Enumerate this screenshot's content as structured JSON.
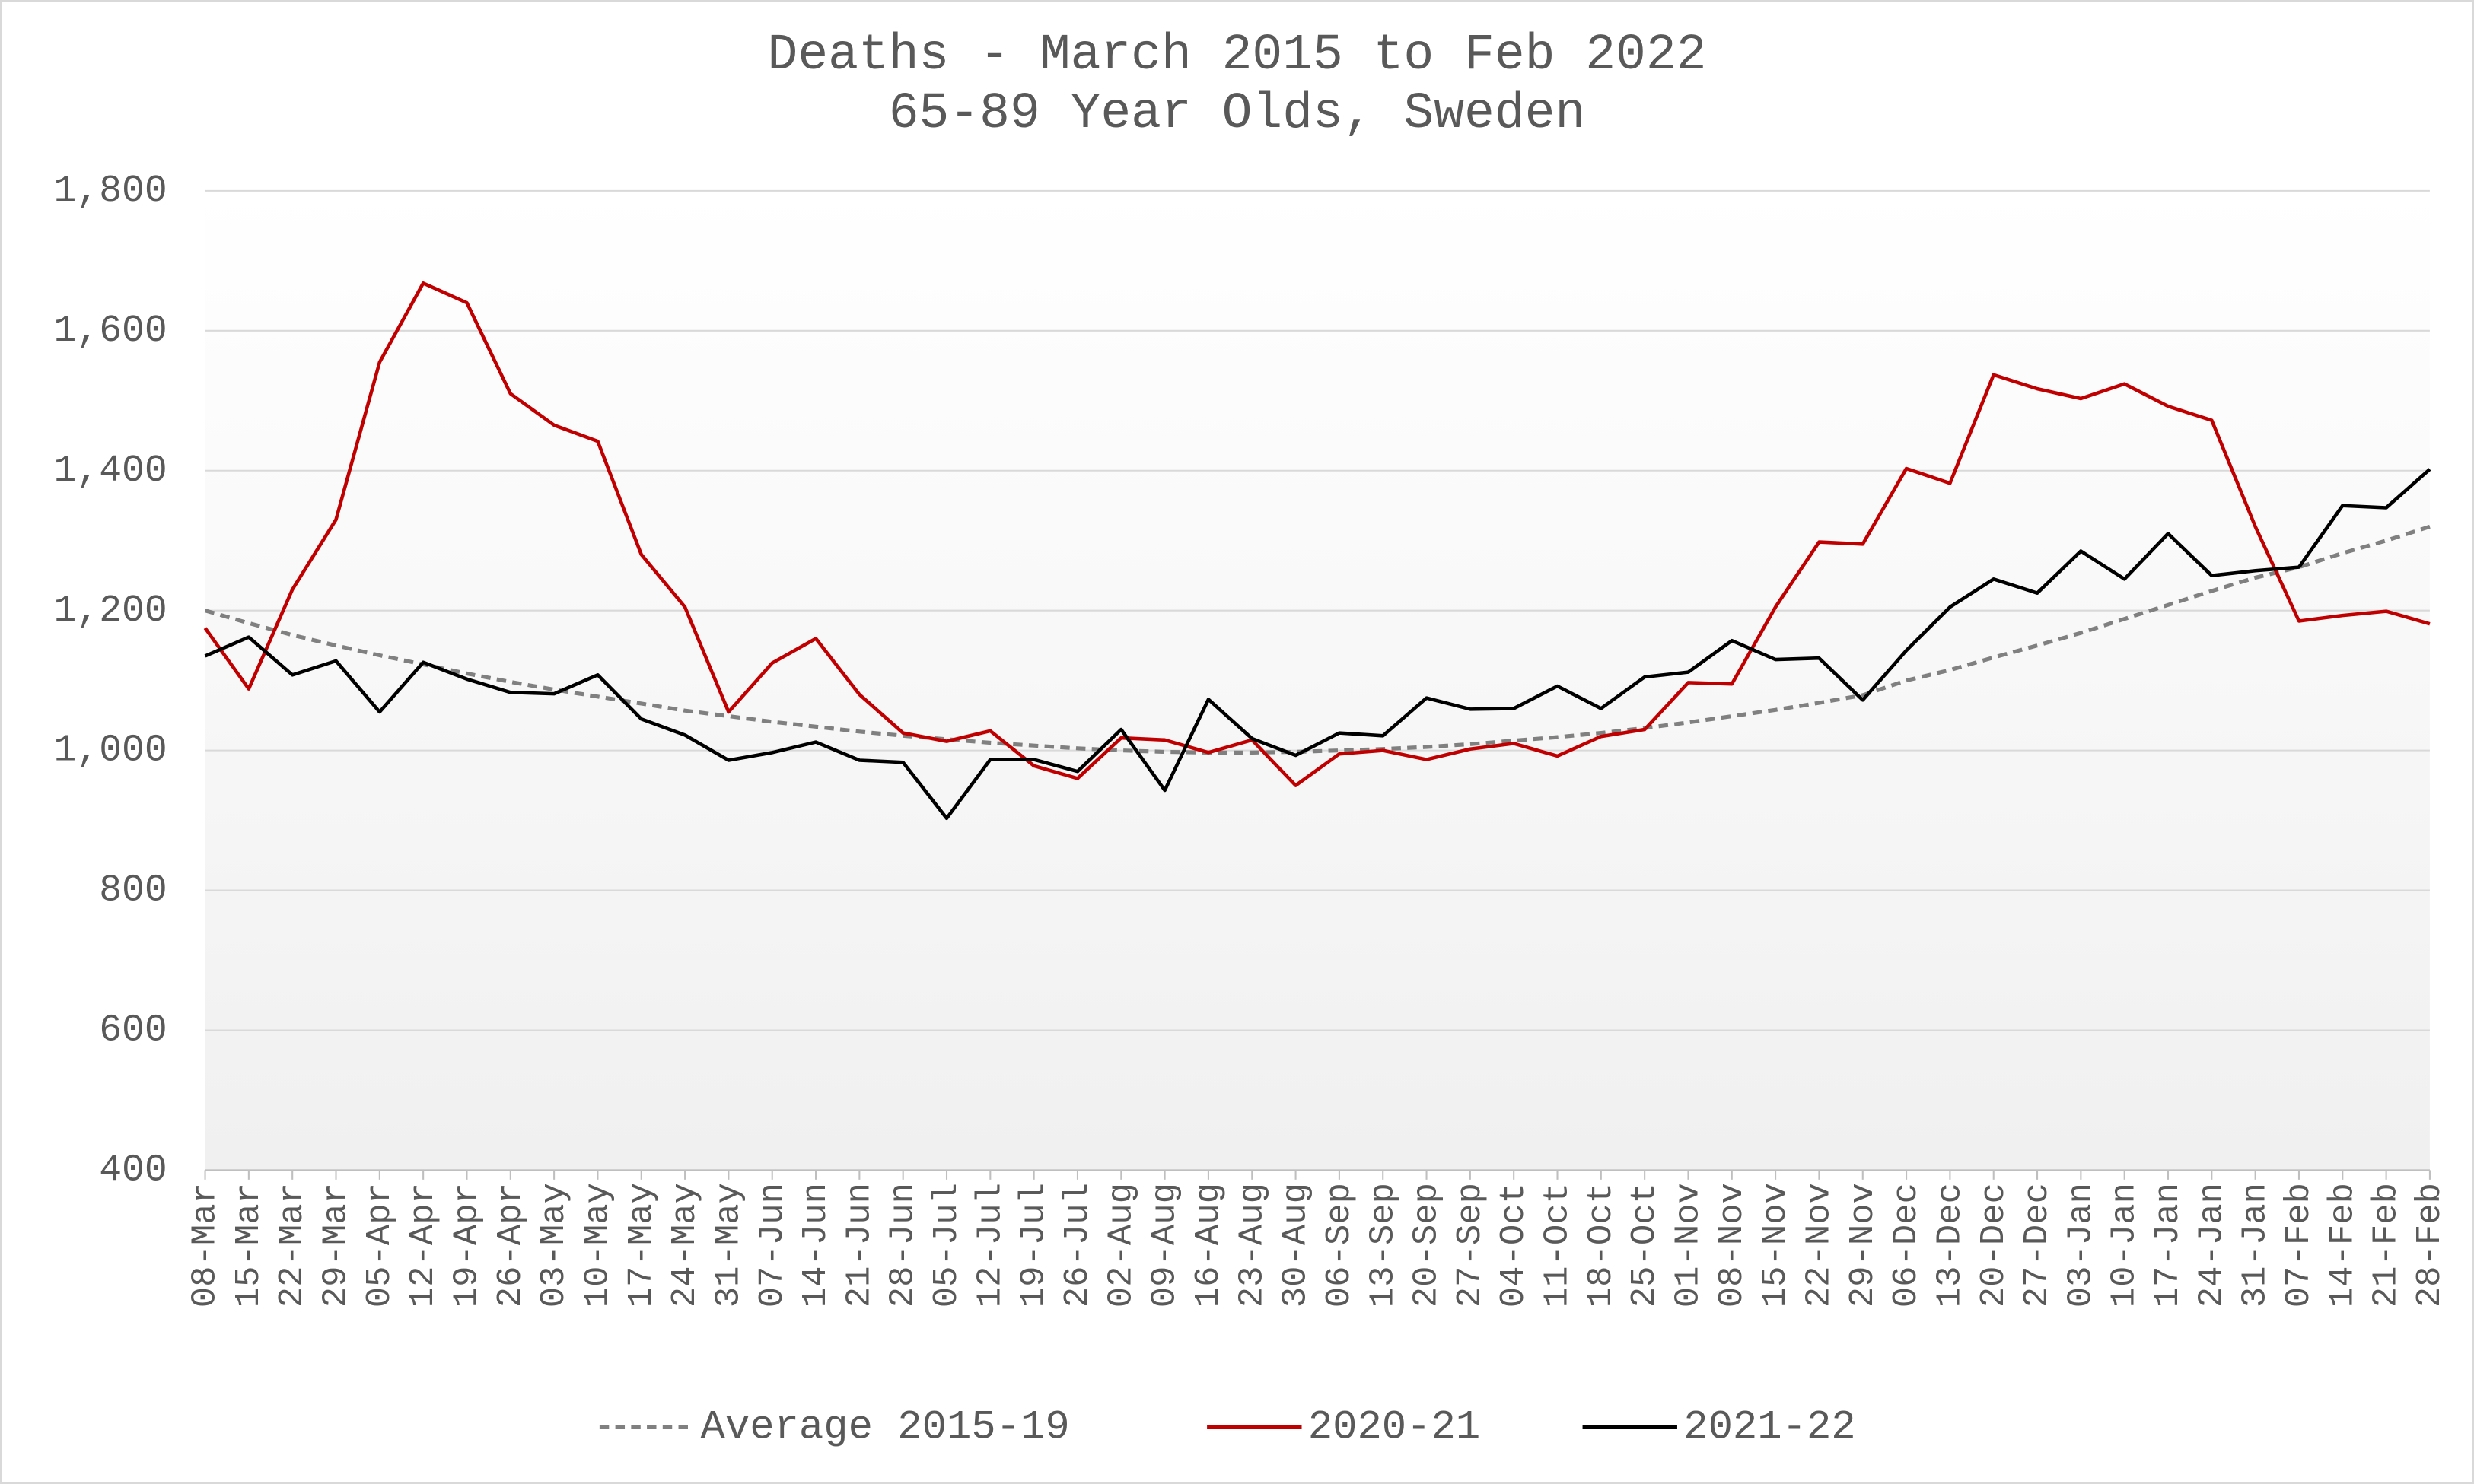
{
  "chart_data": {
    "type": "line",
    "title": "Deaths - March 2015 to Feb 2022",
    "subtitle": "65-89 Year Olds, Sweden",
    "categories": [
      "08-Mar",
      "15-Mar",
      "22-Mar",
      "29-Mar",
      "05-Apr",
      "12-Apr",
      "19-Apr",
      "26-Apr",
      "03-May",
      "10-May",
      "17-May",
      "24-May",
      "31-May",
      "07-Jun",
      "14-Jun",
      "21-Jun",
      "28-Jun",
      "05-Jul",
      "12-Jul",
      "19-Jul",
      "26-Jul",
      "02-Aug",
      "09-Aug",
      "16-Aug",
      "23-Aug",
      "30-Aug",
      "06-Sep",
      "13-Sep",
      "20-Sep",
      "27-Sep",
      "04-Oct",
      "11-Oct",
      "18-Oct",
      "25-Oct",
      "01-Nov",
      "08-Nov",
      "15-Nov",
      "22-Nov",
      "29-Nov",
      "06-Dec",
      "13-Dec",
      "20-Dec",
      "27-Dec",
      "03-Jan",
      "10-Jan",
      "17-Jan",
      "24-Jan",
      "31-Jan",
      "07-Feb",
      "14-Feb",
      "21-Feb",
      "28-Feb"
    ],
    "series": [
      {
        "name": "Average 2015-19",
        "color": "#808080",
        "dashed": true,
        "values": [
          1200,
          1182,
          1165,
          1150,
          1136,
          1123,
          1110,
          1098,
          1087,
          1077,
          1067,
          1057,
          1049,
          1041,
          1034,
          1027,
          1021,
          1016,
          1011,
          1007,
          1003,
          1000,
          998,
          997,
          997,
          998,
          1000,
          1002,
          1005,
          1009,
          1014,
          1019,
          1025,
          1032,
          1040,
          1049,
          1058,
          1068,
          1079,
          1100,
          1115,
          1133,
          1150,
          1168,
          1188,
          1208,
          1228,
          1247,
          1262,
          1282,
          1300,
          1320
        ]
      },
      {
        "name": "2020-21",
        "color": "#c00000",
        "values": [
          1175,
          1088,
          1230,
          1330,
          1555,
          1668,
          1640,
          1510,
          1465,
          1442,
          1280,
          1205,
          1055,
          1125,
          1160,
          1080,
          1025,
          1013,
          1028,
          978,
          960,
          1018,
          1015,
          997,
          1015,
          950,
          995,
          1000,
          987,
          1002,
          1010,
          992,
          1020,
          1030,
          1097,
          1095,
          1205,
          1298,
          1295,
          1403,
          1382,
          1537,
          1517,
          1503,
          1524,
          1492,
          1472,
          1320,
          1185,
          1193,
          1199,
          1181
        ]
      },
      {
        "name": "2021-22",
        "color": "#000000",
        "values": [
          1135,
          1162,
          1108,
          1128,
          1055,
          1126,
          1102,
          1083,
          1081,
          1108,
          1045,
          1022,
          986,
          997,
          1012,
          986,
          983,
          903,
          987,
          987,
          970,
          1030,
          943,
          1073,
          1017,
          993,
          1025,
          1021,
          1075,
          1059,
          1060,
          1092,
          1060,
          1105,
          1112,
          1157,
          1130,
          1132,
          1072,
          1143,
          1205,
          1245,
          1225,
          1285,
          1245,
          1310,
          1250,
          1257,
          1262,
          1350,
          1347,
          1402
        ]
      }
    ],
    "ylim": [
      400,
      1800
    ],
    "yticks": [
      400,
      600,
      800,
      {
        "value": 1000,
        "label": "1,000"
      },
      {
        "value": 1200,
        "label": "1,200"
      },
      {
        "value": 1400,
        "label": "1,400"
      },
      {
        "value": 1600,
        "label": "1,600"
      },
      {
        "value": 1800,
        "label": "1,800"
      }
    ],
    "grid": true,
    "legend": "bottom"
  }
}
